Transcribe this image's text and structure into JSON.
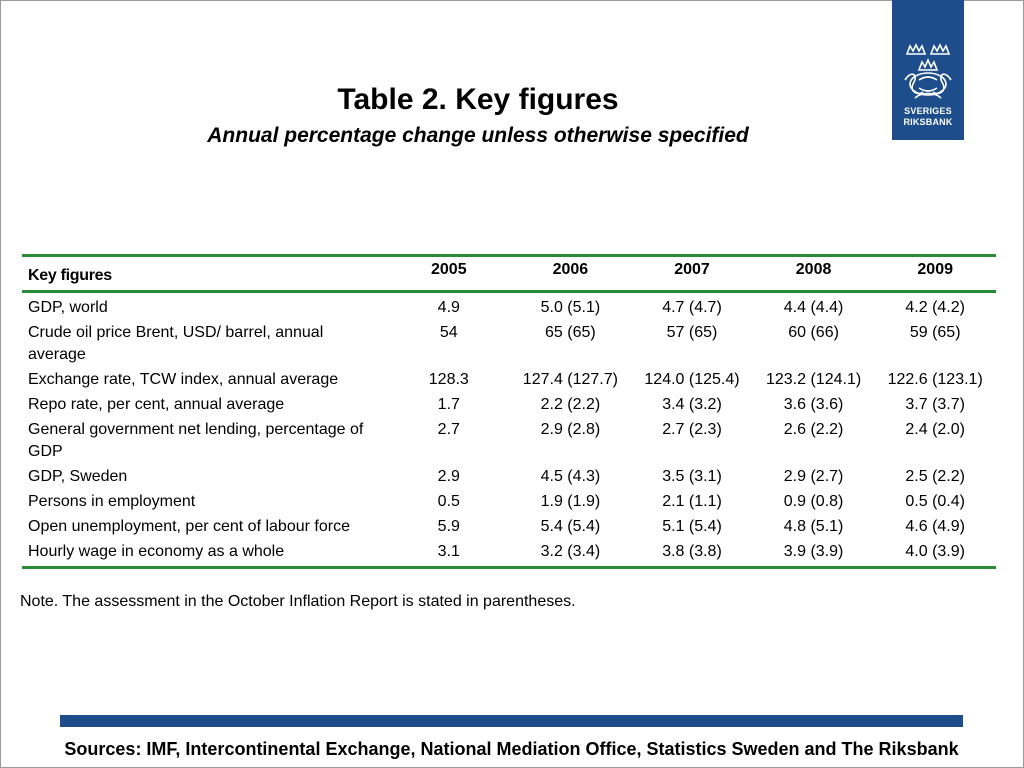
{
  "logo": {
    "line1": "SVERIGES",
    "line2": "RIKSBANK",
    "color": "#1e4d8c"
  },
  "title": "Table 2. Key figures",
  "subtitle": "Annual percentage change unless otherwise specified",
  "table": {
    "header_label": "Key figures",
    "years": [
      "2005",
      "2006",
      "2007",
      "2008",
      "2009"
    ],
    "rows": [
      {
        "label": "GDP, world",
        "values": [
          "4.9",
          "5.0 (5.1)",
          "4.7 (4.7)",
          "4.4 (4.4)",
          "4.2 (4.2)"
        ]
      },
      {
        "label": "Crude oil price Brent, USD/ barrel, annual average",
        "values": [
          "54",
          "65 (65)",
          "57 (65)",
          "60 (66)",
          "59 (65)"
        ]
      },
      {
        "label": "Exchange rate, TCW index, annual average",
        "values": [
          "128.3",
          "127.4 (127.7)",
          "124.0 (125.4)",
          "123.2 (124.1)",
          "122.6 (123.1)"
        ]
      },
      {
        "label": "Repo rate, per cent, annual average",
        "values": [
          "1.7",
          "2.2 (2.2)",
          "3.4 (3.2)",
          "3.6 (3.6)",
          "3.7 (3.7)"
        ]
      },
      {
        "label": "General government net lending, percentage of GDP",
        "values": [
          "2.7",
          "2.9 (2.8)",
          "2.7 (2.3)",
          "2.6 (2.2)",
          "2.4 (2.0)"
        ]
      },
      {
        "label": "GDP, Sweden",
        "values": [
          "2.9",
          "4.5 (4.3)",
          "3.5 (3.1)",
          "2.9 (2.7)",
          "2.5 (2.2)"
        ]
      },
      {
        "label": "Persons in employment",
        "values": [
          "0.5",
          "1.9 (1.9)",
          "2.1 (1.1)",
          "0.9 (0.8)",
          "0.5 (0.4)"
        ]
      },
      {
        "label": "Open unemployment, per cent of labour force",
        "values": [
          "5.9",
          "5.4 (5.4)",
          "5.1 (5.4)",
          "4.8 (5.1)",
          "4.6 (4.9)"
        ]
      },
      {
        "label": "Hourly wage in economy as a whole",
        "values": [
          "3.1",
          "3.2 (3.4)",
          "3.8 (3.8)",
          "3.9 (3.9)",
          "4.0 (3.9)"
        ]
      }
    ]
  },
  "note": "Note. The assessment in the October Inflation Report is stated in parentheses.",
  "sources": "Sources: IMF, Intercontinental Exchange, National Mediation Office, Statistics Sweden and The Riksbank",
  "colors": {
    "rule_green": "#2a8a3a",
    "brand_blue": "#1e4d8c"
  }
}
